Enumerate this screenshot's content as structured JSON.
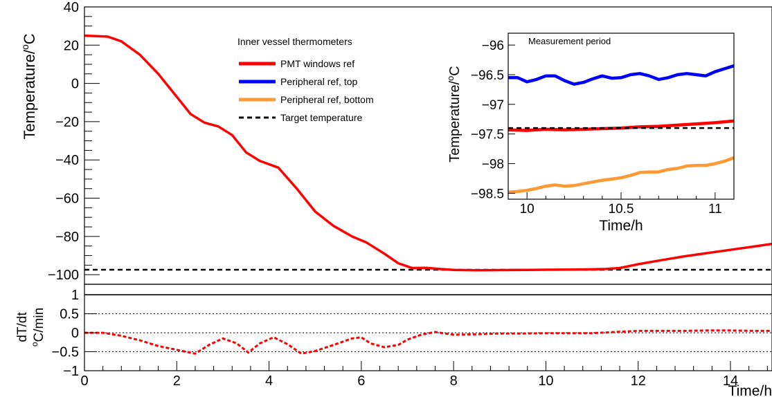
{
  "chart_data": [
    {
      "id": "main",
      "type": "line",
      "ylabel_base": "Temperature/",
      "ylabel_sup": "o",
      "ylabel_unit": "C",
      "ylim": [
        -105,
        40
      ],
      "xlim": [
        0,
        14.9
      ],
      "yticks": [
        {
          "v": 40,
          "t": "40"
        },
        {
          "v": 20,
          "t": "20"
        },
        {
          "v": 0,
          "t": "0"
        },
        {
          "v": -20,
          "t": "−20"
        },
        {
          "v": -40,
          "t": "−40"
        },
        {
          "v": -60,
          "t": "−60"
        },
        {
          "v": -80,
          "t": "−80"
        },
        {
          "v": -100,
          "t": "−100"
        }
      ],
      "legend": {
        "title": "Inner vessel thermometers",
        "entries": [
          {
            "name": "PMT windows ref",
            "color": "#ff0000",
            "style": "solid"
          },
          {
            "name": "Peripheral ref, top",
            "color": "#0000ff",
            "style": "solid"
          },
          {
            "name": "Peripheral ref, bottom",
            "color": "#ff9933",
            "style": "solid"
          },
          {
            "name": "Target temperature",
            "color": "#000000",
            "style": "dashed"
          }
        ]
      },
      "series": [
        {
          "name": "PMT windows ref",
          "color": "#ff0000",
          "x": [
            0,
            0.5,
            0.8,
            1.2,
            1.6,
            2.0,
            2.3,
            2.6,
            2.9,
            3.2,
            3.5,
            3.8,
            4.2,
            4.6,
            5.0,
            5.4,
            5.8,
            6.1,
            6.5,
            6.8,
            7.1,
            7.4,
            7.7,
            8.0,
            8.5,
            9.0,
            9.5,
            10.0,
            10.5,
            11.0,
            11.3,
            11.6,
            12.0,
            12.5,
            13.0,
            13.5,
            14.0,
            14.5,
            14.9
          ],
          "y": [
            25,
            24.5,
            22,
            15,
            5,
            -7,
            -16,
            -20.5,
            -22.5,
            -27,
            -36,
            -40.5,
            -44,
            -55,
            -67,
            -74.5,
            -80,
            -83,
            -89,
            -94,
            -96.5,
            -96.4,
            -97,
            -97.5,
            -97.7,
            -97.6,
            -97.5,
            -97.4,
            -97.3,
            -97.2,
            -97.0,
            -96.5,
            -94.5,
            -92.4,
            -90.4,
            -88.7,
            -87,
            -85.3,
            -83.9
          ]
        }
      ],
      "target_temperature": -97.4
    },
    {
      "id": "rate",
      "type": "line",
      "ylabel_line1": "dT/dt",
      "ylabel_sup": "o",
      "ylabel_unit": "C/min",
      "xlabel": "Time/h",
      "ylim": [
        -1,
        1.15
      ],
      "xlim": [
        0,
        14.9
      ],
      "xticks": [
        {
          "v": 0,
          "t": "0"
        },
        {
          "v": 2,
          "t": "2"
        },
        {
          "v": 4,
          "t": "4"
        },
        {
          "v": 6,
          "t": "6"
        },
        {
          "v": 8,
          "t": "8"
        },
        {
          "v": 10,
          "t": "10"
        },
        {
          "v": 12,
          "t": "12"
        },
        {
          "v": 14,
          "t": "14"
        }
      ],
      "yticks": [
        {
          "v": 1,
          "t": "1"
        },
        {
          "v": 0.5,
          "t": "0.5"
        },
        {
          "v": 0,
          "t": "0"
        },
        {
          "v": -0.5,
          "t": "−0.5"
        },
        {
          "v": -1,
          "t": "−1"
        }
      ],
      "reference_lines": [
        1,
        0.5,
        0,
        -0.5
      ],
      "series": [
        {
          "name": "PMT windows ref dT/dt",
          "color": "#ff0000",
          "x": [
            0,
            0.4,
            0.8,
            1.2,
            1.6,
            2.0,
            2.4,
            2.7,
            3.0,
            3.3,
            3.55,
            3.8,
            4.1,
            4.4,
            4.7,
            5.0,
            5.4,
            5.8,
            6.0,
            6.2,
            6.5,
            6.8,
            7.0,
            7.3,
            7.6,
            8.0,
            8.5,
            9.0,
            9.5,
            10.0,
            10.5,
            11.0,
            11.5,
            12.0,
            12.5,
            13.0,
            13.5,
            14.0,
            14.5,
            14.9
          ],
          "y": [
            0,
            0,
            -0.08,
            -0.2,
            -0.35,
            -0.45,
            -0.55,
            -0.32,
            -0.15,
            -0.28,
            -0.52,
            -0.28,
            -0.12,
            -0.3,
            -0.55,
            -0.48,
            -0.32,
            -0.15,
            -0.12,
            -0.28,
            -0.38,
            -0.32,
            -0.18,
            -0.05,
            0.02,
            -0.05,
            -0.04,
            -0.02,
            -0.02,
            -0.01,
            -0.01,
            -0.01,
            0.02,
            0.05,
            0.05,
            0.05,
            0.06,
            0.06,
            0.05,
            0.05
          ]
        }
      ]
    },
    {
      "id": "inset",
      "type": "line",
      "title": "Measurement period",
      "ylabel_base": "Temperature/",
      "ylabel_sup": "o",
      "ylabel_unit": "C",
      "xlabel": "Time/h",
      "xlim": [
        9.9,
        11.1
      ],
      "ylim": [
        -98.6,
        -95.8
      ],
      "xticks": [
        {
          "v": 10,
          "t": "10"
        },
        {
          "v": 10.5,
          "t": "10.5"
        },
        {
          "v": 11,
          "t": "11"
        }
      ],
      "yticks": [
        {
          "v": -96,
          "t": "−96"
        },
        {
          "v": -96.5,
          "t": "−96.5"
        },
        {
          "v": -97,
          "t": "−97"
        },
        {
          "v": -97.5,
          "t": "−97.5"
        },
        {
          "v": -98,
          "t": "−98"
        },
        {
          "v": -98.5,
          "t": "−98.5"
        }
      ],
      "target_temperature": -97.4,
      "series": [
        {
          "name": "Peripheral ref, top",
          "color": "#0000ff",
          "x": [
            9.9,
            9.95,
            10.0,
            10.05,
            10.1,
            10.15,
            10.2,
            10.25,
            10.3,
            10.35,
            10.4,
            10.45,
            10.5,
            10.55,
            10.6,
            10.65,
            10.7,
            10.75,
            10.8,
            10.85,
            10.9,
            10.95,
            11.0,
            11.05,
            11.1
          ],
          "y": [
            -96.55,
            -96.55,
            -96.62,
            -96.58,
            -96.52,
            -96.52,
            -96.6,
            -96.66,
            -96.63,
            -96.57,
            -96.52,
            -96.56,
            -96.55,
            -96.5,
            -96.48,
            -96.52,
            -96.58,
            -96.55,
            -96.5,
            -96.48,
            -96.5,
            -96.52,
            -96.45,
            -96.4,
            -96.35
          ]
        },
        {
          "name": "PMT windows ref",
          "color": "#ff0000",
          "x": [
            9.9,
            10.0,
            10.1,
            10.2,
            10.3,
            10.4,
            10.5,
            10.6,
            10.7,
            10.8,
            10.9,
            11.0,
            11.1
          ],
          "y": [
            -97.43,
            -97.44,
            -97.42,
            -97.43,
            -97.42,
            -97.41,
            -97.4,
            -97.38,
            -97.37,
            -97.35,
            -97.33,
            -97.31,
            -97.28
          ]
        },
        {
          "name": "Peripheral ref, bottom",
          "color": "#ff9933",
          "x": [
            9.9,
            9.95,
            10.0,
            10.05,
            10.1,
            10.15,
            10.2,
            10.25,
            10.3,
            10.35,
            10.4,
            10.45,
            10.5,
            10.55,
            10.6,
            10.65,
            10.7,
            10.75,
            10.8,
            10.85,
            10.9,
            10.95,
            11.0,
            11.05,
            11.1
          ],
          "y": [
            -98.48,
            -98.47,
            -98.45,
            -98.42,
            -98.38,
            -98.36,
            -98.38,
            -98.37,
            -98.34,
            -98.31,
            -98.28,
            -98.26,
            -98.24,
            -98.2,
            -98.15,
            -98.14,
            -98.14,
            -98.1,
            -98.08,
            -98.04,
            -98.03,
            -98.03,
            -98.0,
            -97.96,
            -97.9
          ]
        }
      ]
    }
  ]
}
